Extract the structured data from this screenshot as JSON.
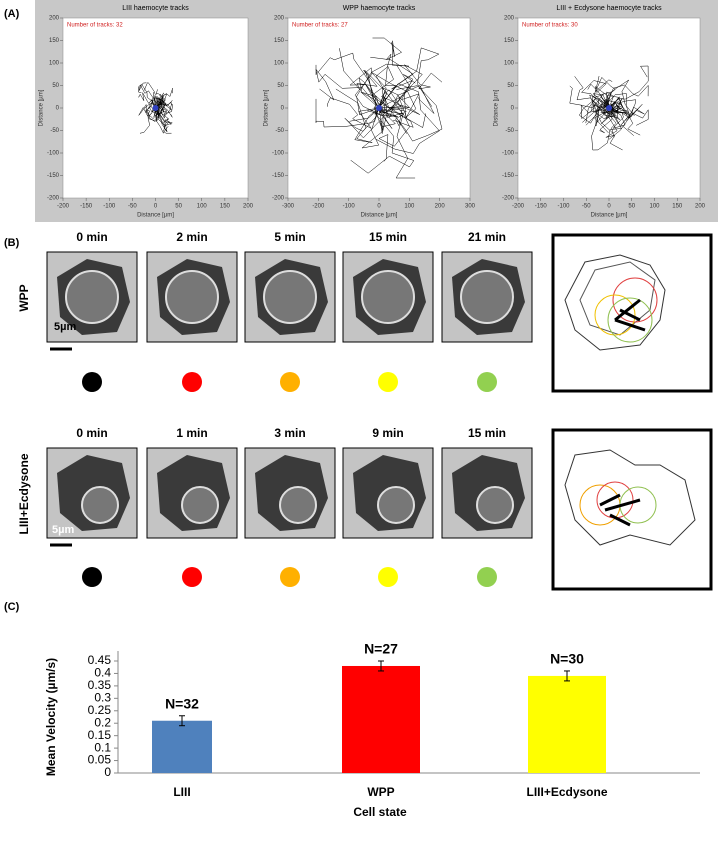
{
  "panel_labels": [
    "(A)",
    "(B)",
    "(C)"
  ],
  "time_lapse": [
    {
      "label": "WPP",
      "times": [
        "0 min",
        "2 min",
        "5 min",
        "15 min",
        "21 min"
      ],
      "scale_bar": "5µm"
    },
    {
      "label": "LIII+Ecdysone",
      "times": [
        "0 min",
        "1 min",
        "3 min",
        "9 min",
        "15 min"
      ],
      "scale_bar": "5µm"
    }
  ],
  "dot_colors": [
    "#000000",
    "#ff0000",
    "#ffb000",
    "#ffff00",
    "#92d050"
  ],
  "chart_data": [
    {
      "type": "track",
      "title": "LIII haemocyte tracks",
      "annotation": "Number of tracks: 32",
      "xlabel": "Distance [µm]",
      "ylabel": "Distance [µm]",
      "xlim": [
        -200,
        200
      ],
      "xticks": [
        -200,
        -150,
        -100,
        -50,
        0,
        50,
        100,
        150,
        200
      ],
      "ylim": [
        -200,
        200
      ],
      "yticks": [
        -200,
        -150,
        -100,
        -50,
        0,
        50,
        100,
        150,
        200
      ]
    },
    {
      "type": "track",
      "title": "WPP haemocyte tracks",
      "annotation": "Number of tracks: 27",
      "xlabel": "Distance [µm]",
      "ylabel": "Distance [µm]",
      "xlim": [
        -300,
        300
      ],
      "xticks": [
        -300,
        -200,
        -100,
        0,
        100,
        200,
        300
      ],
      "ylim": [
        -200,
        200
      ],
      "yticks": [
        -200,
        -150,
        -100,
        -50,
        0,
        50,
        100,
        150,
        200
      ]
    },
    {
      "type": "track",
      "title": "LIII + Ecdysone haemocyte tracks",
      "annotation": "Number of tracks: 30",
      "xlabel": "Distance [µm]",
      "ylabel": "Distance [µm]",
      "xlim": [
        -200,
        200
      ],
      "xticks": [
        -200,
        -150,
        -100,
        -50,
        0,
        50,
        100,
        150,
        200
      ],
      "ylim": [
        -200,
        200
      ],
      "yticks": [
        -200,
        -150,
        -100,
        -50,
        0,
        50,
        100,
        150,
        200
      ]
    },
    {
      "type": "bar",
      "ylabel": "Mean Velocity (µm/s)",
      "xlabel": "Cell state",
      "categories": [
        "LIII",
        "WPP",
        "LIII+Ecdysone"
      ],
      "values": [
        0.21,
        0.43,
        0.39
      ],
      "errors": [
        0.02,
        0.02,
        0.02
      ],
      "annotations": [
        "N=32",
        "N=27",
        "N=30"
      ],
      "colors": [
        "#4f81bd",
        "#ff0000",
        "#ffff00"
      ],
      "ylim": [
        0,
        0.45
      ],
      "yticks": [
        0,
        0.05,
        0.1,
        0.15,
        0.2,
        0.25,
        0.3,
        0.35,
        0.4,
        0.45
      ]
    }
  ]
}
